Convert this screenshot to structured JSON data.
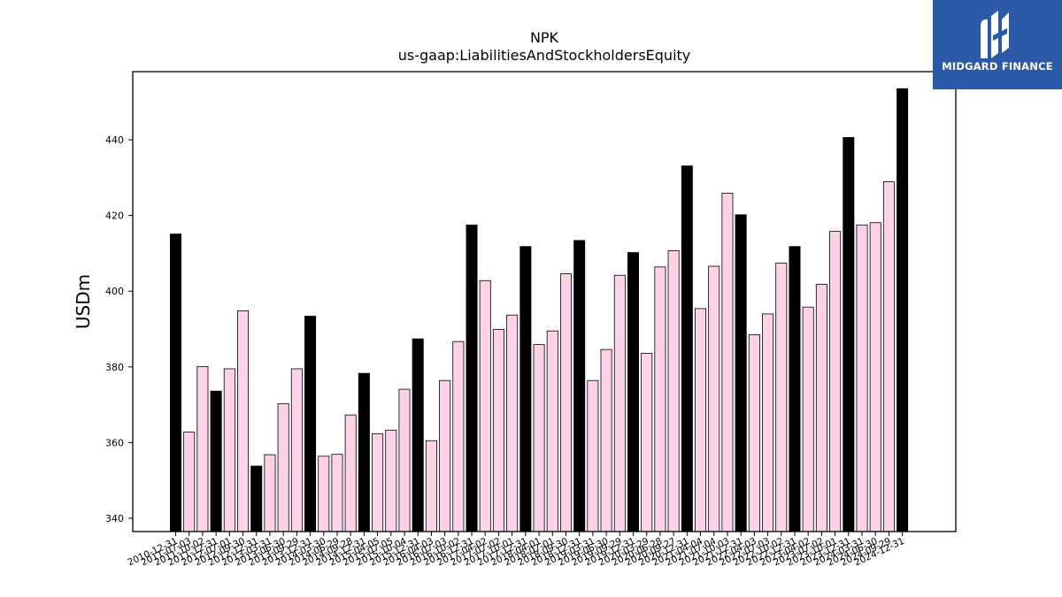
{
  "brand": {
    "name": "MIDGARD FINANCE",
    "logo_icon": "midgard-logo-icon",
    "color": "#2c5aa8"
  },
  "colors": {
    "annual_bar": "#000000",
    "quarter_bar": "#ffd1e8",
    "bar_edge": "#000000"
  },
  "chart_data": {
    "type": "bar",
    "title": "NPK",
    "subtitle": "us-gaap:LiabilitiesAndStockholdersEquity",
    "xlabel": "",
    "ylabel": "USDm",
    "ylim": [
      336.5,
      458
    ],
    "yticks": [
      340,
      360,
      380,
      400,
      420,
      440
    ],
    "grid": false,
    "categories": [
      "2010-12-31",
      "2011-07-03",
      "2011-10-02",
      "2011-12-31",
      "2012-07-01",
      "2012-09-30",
      "2012-12-31",
      "2013-03-31",
      "2013-06-30",
      "2013-09-29",
      "2013-12-31",
      "2014-03-30",
      "2014-06-29",
      "2014-09-28",
      "2014-12-31",
      "2015-04-05",
      "2015-07-05",
      "2015-10-04",
      "2015-12-31",
      "2016-04-03",
      "2016-07-03",
      "2016-10-02",
      "2016-12-31",
      "2017-04-02",
      "2017-07-02",
      "2017-10-01",
      "2017-12-31",
      "2018-04-01",
      "2018-07-01",
      "2018-09-30",
      "2018-12-31",
      "2019-03-31",
      "2019-06-30",
      "2019-09-29",
      "2019-12-31",
      "2020-03-29",
      "2020-06-28",
      "2020-09-27",
      "2020-12-31",
      "2021-04-04",
      "2021-07-04",
      "2021-10-03",
      "2021-12-31",
      "2022-04-03",
      "2022-07-03",
      "2022-10-02",
      "2022-12-31",
      "2023-04-02",
      "2023-07-02",
      "2023-10-01",
      "2023-12-31",
      "2024-03-31",
      "2024-06-30",
      "2024-09-29",
      "2024-12-31"
    ],
    "values": [
      415.1,
      362.8,
      380.1,
      373.6,
      379.5,
      394.8,
      353.8,
      356.8,
      370.3,
      379.5,
      393.4,
      356.4,
      356.9,
      367.3,
      378.3,
      362.3,
      363.3,
      374.1,
      387.4,
      360.5,
      376.4,
      386.7,
      417.5,
      402.8,
      389.9,
      393.7,
      411.8,
      385.9,
      389.5,
      404.6,
      413.4,
      376.4,
      384.6,
      404.2,
      410.2,
      383.6,
      406.4,
      410.7,
      433.1,
      395.4,
      406.6,
      425.9,
      420.2,
      388.5,
      394.0,
      407.4,
      411.8,
      395.8,
      401.8,
      415.8,
      440.6,
      417.5,
      418.1,
      428.9,
      453.5
    ],
    "annual": [
      true,
      false,
      false,
      true,
      false,
      false,
      true,
      false,
      false,
      false,
      true,
      false,
      false,
      false,
      true,
      false,
      false,
      false,
      true,
      false,
      false,
      false,
      true,
      false,
      false,
      false,
      true,
      false,
      false,
      false,
      true,
      false,
      false,
      false,
      true,
      false,
      false,
      false,
      true,
      false,
      false,
      false,
      true,
      false,
      false,
      false,
      true,
      false,
      false,
      false,
      true,
      false,
      false,
      false,
      true
    ]
  }
}
